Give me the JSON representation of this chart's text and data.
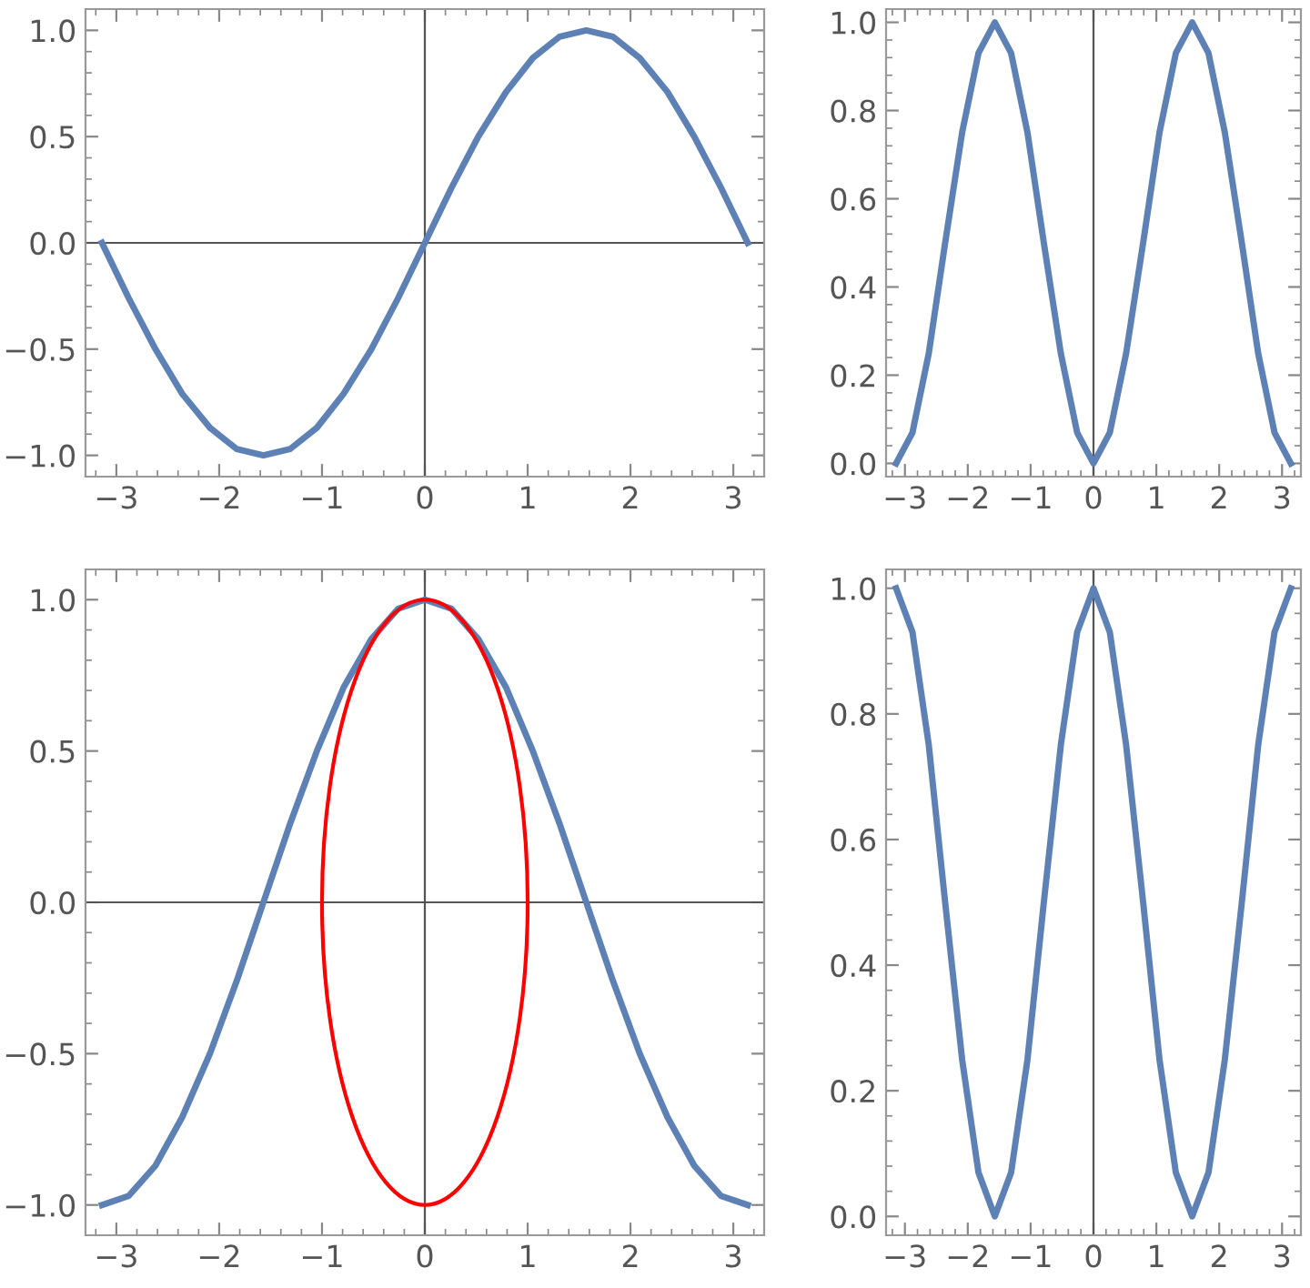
{
  "chart_data": [
    {
      "type": "line",
      "x": [
        -3.14,
        -2.88,
        -2.62,
        -2.36,
        -2.09,
        -1.83,
        -1.57,
        -1.31,
        -1.05,
        -0.79,
        -0.52,
        -0.26,
        0,
        0.26,
        0.52,
        0.79,
        1.05,
        1.31,
        1.57,
        1.83,
        2.09,
        2.36,
        2.62,
        2.88,
        3.14
      ],
      "series": [
        {
          "color": "#5e81b5",
          "values": [
            0,
            -0.26,
            -0.5,
            -0.71,
            -0.87,
            -0.97,
            -1,
            -0.97,
            -0.87,
            -0.71,
            -0.5,
            -0.26,
            0,
            0.26,
            0.5,
            0.71,
            0.87,
            0.97,
            1,
            0.97,
            0.87,
            0.71,
            0.5,
            0.26,
            0
          ]
        }
      ],
      "xlim": [
        -3.3,
        3.3
      ],
      "ylim": [
        -1.1,
        1.1
      ],
      "xticks": [
        {
          "value": -3,
          "label": "−3"
        },
        {
          "value": -2,
          "label": "−2"
        },
        {
          "value": -1,
          "label": "−1"
        },
        0,
        1,
        2,
        3
      ],
      "yticks": [
        {
          "value": -1,
          "label": "−1.0"
        },
        {
          "value": -0.5,
          "label": "−0.5"
        },
        {
          "value": 0,
          "label": "0.0"
        },
        0.5,
        {
          "value": 1,
          "label": "1.0"
        }
      ],
      "ref_lines": [
        {
          "axis": "x",
          "value": 0,
          "color": "#555555"
        },
        {
          "axis": "y",
          "value": 0,
          "color": "#555555"
        }
      ],
      "grid": false
    },
    {
      "type": "line",
      "x": [
        -3.14,
        -2.88,
        -2.62,
        -2.36,
        -2.09,
        -1.83,
        -1.57,
        -1.31,
        -1.05,
        -0.79,
        -0.52,
        -0.26,
        0,
        0.26,
        0.52,
        0.79,
        1.05,
        1.31,
        1.57,
        1.83,
        2.09,
        2.36,
        2.62,
        2.88,
        3.14
      ],
      "series": [
        {
          "color": "#5e81b5",
          "values": [
            0,
            0.07,
            0.25,
            0.5,
            0.75,
            0.93,
            1,
            0.93,
            0.75,
            0.5,
            0.25,
            0.07,
            0,
            0.07,
            0.25,
            0.5,
            0.75,
            0.93,
            1,
            0.93,
            0.75,
            0.5,
            0.25,
            0.07,
            0
          ]
        }
      ],
      "xlim": [
        -3.3,
        3.3
      ],
      "ylim": [
        -0.03,
        1.03
      ],
      "xticks": [
        {
          "value": -3,
          "label": "−3"
        },
        {
          "value": -2,
          "label": "−2"
        },
        {
          "value": -1,
          "label": "−1"
        },
        0,
        1,
        2,
        3
      ],
      "yticks": [
        {
          "value": 0,
          "label": "0.0"
        },
        0.2,
        0.4,
        0.6,
        0.8,
        {
          "value": 1,
          "label": "1.0"
        }
      ],
      "ref_lines": [
        {
          "axis": "x",
          "value": 0,
          "color": "#555555"
        }
      ],
      "grid": false
    },
    {
      "type": "line",
      "x": [
        -3.14,
        -2.88,
        -2.62,
        -2.36,
        -2.09,
        -1.83,
        -1.57,
        -1.31,
        -1.05,
        -0.79,
        -0.52,
        -0.26,
        0,
        0.26,
        0.52,
        0.79,
        1.05,
        1.31,
        1.57,
        1.83,
        2.09,
        2.36,
        2.62,
        2.88,
        3.14
      ],
      "series": [
        {
          "color": "#5e81b5",
          "values": [
            -1,
            -0.97,
            -0.87,
            -0.71,
            -0.5,
            -0.26,
            0,
            0.26,
            0.5,
            0.71,
            0.87,
            0.97,
            1,
            0.97,
            0.87,
            0.71,
            0.5,
            0.26,
            0,
            -0.26,
            -0.5,
            -0.71,
            -0.87,
            -0.97,
            -1
          ]
        }
      ],
      "xlim": [
        -3.3,
        3.3
      ],
      "ylim": [
        -1.1,
        1.1
      ],
      "xticks": [
        {
          "value": -3,
          "label": "−3"
        },
        {
          "value": -2,
          "label": "−2"
        },
        {
          "value": -1,
          "label": "−1"
        },
        0,
        1,
        2,
        3
      ],
      "yticks": [
        {
          "value": -1,
          "label": "−1.0"
        },
        {
          "value": -0.5,
          "label": "−0.5"
        },
        {
          "value": 0,
          "label": "0.0"
        },
        0.5,
        {
          "value": 1,
          "label": "1.0"
        }
      ],
      "ref_lines": [
        {
          "axis": "x",
          "value": 0,
          "color": "#555555"
        },
        {
          "axis": "y",
          "value": 0,
          "color": "#555555"
        }
      ],
      "grid": false
    },
    {
      "type": "line",
      "x": [
        -3.14,
        -2.88,
        -2.62,
        -2.36,
        -2.09,
        -1.83,
        -1.57,
        -1.31,
        -1.05,
        -0.79,
        -0.52,
        -0.26,
        0,
        0.26,
        0.52,
        0.79,
        1.05,
        1.31,
        1.57,
        1.83,
        2.09,
        2.36,
        2.62,
        2.88,
        3.14
      ],
      "series": [
        {
          "color": "#5e81b5",
          "values": [
            1,
            0.93,
            0.75,
            0.5,
            0.25,
            0.07,
            0,
            0.07,
            0.25,
            0.5,
            0.75,
            0.93,
            1,
            0.93,
            0.75,
            0.5,
            0.25,
            0.07,
            0,
            0.07,
            0.25,
            0.5,
            0.75,
            0.93,
            1
          ]
        }
      ],
      "xlim": [
        -3.3,
        3.3
      ],
      "ylim": [
        -0.03,
        1.03
      ],
      "xticks": [
        {
          "value": -3,
          "label": "−3"
        },
        {
          "value": -2,
          "label": "−2"
        },
        {
          "value": -1,
          "label": "−1"
        },
        0,
        1,
        2,
        3
      ],
      "yticks": [
        {
          "value": 0,
          "label": "0.0"
        },
        0.2,
        0.4,
        0.6,
        0.8,
        {
          "value": 1,
          "label": "1.0"
        }
      ],
      "ref_lines": [
        {
          "axis": "x",
          "value": 0,
          "color": "#555555"
        }
      ],
      "grid": false
    }
  ]
}
